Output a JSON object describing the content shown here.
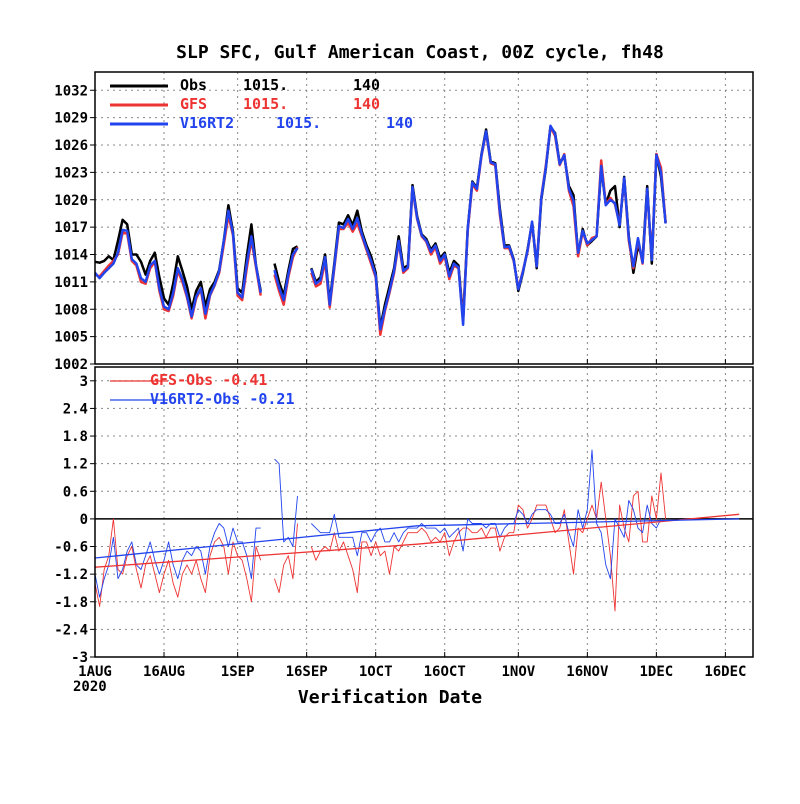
{
  "title": "SLP SFC, Gulf American Coast, 00Z cycle, fh48",
  "colors": {
    "obs": "#000000",
    "gfs": "#ee3333",
    "v16": "#2244ee"
  },
  "chart_data": [
    {
      "type": "line",
      "panel": "top",
      "x_start": "2020-08-01",
      "x_end": "2020-12-22",
      "ylim": [
        1002,
        1034
      ],
      "yticks": [
        "1002",
        "1005",
        "1008",
        "1011",
        "1014",
        "1017",
        "1020",
        "1023",
        "1026",
        "1029",
        "1032"
      ],
      "grid": true,
      "legend": {
        "placement": "top-left",
        "entries": [
          {
            "label": "Obs",
            "mean": "1015.",
            "count": "140"
          },
          {
            "label": "GFS",
            "mean": "1015.",
            "count": "140"
          },
          {
            "label": "V16RT2",
            "mean": "1015.",
            "count": "140"
          }
        ]
      },
      "series": [
        {
          "name": "Obs",
          "color": "#000000",
          "values": [
            1013.2,
            1013.1,
            1013.3,
            1013.8,
            1013.4,
            1015.5,
            1017.8,
            1017.3,
            1014.0,
            1014.0,
            1013.2,
            1011.8,
            1013.3,
            1014.2,
            1011.5,
            1009.2,
            1008.5,
            1010.8,
            1013.8,
            1012.2,
            1010.5,
            1008.0,
            1010.0,
            1011.0,
            1008.3,
            1010.2,
            1011.0,
            1012.3,
            1015.5,
            1019.4,
            1016.5,
            1010.3,
            1009.8,
            1013.8,
            1017.3,
            1012.8,
            1010.0,
            null,
            null,
            1013.0,
            1011.0,
            1009.5,
            1012.2,
            1014.6,
            1014.9,
            null,
            null,
            1012.5,
            1011.0,
            1011.5,
            1014.0,
            1008.8,
            1013.0,
            1017.5,
            1017.3,
            1018.3,
            1017.2,
            1018.8,
            1016.5,
            1015.0,
            1013.8,
            1012.0,
            1006.0,
            1008.5,
            1010.5,
            1012.5,
            1016.0,
            1012.5,
            1012.8,
            1021.6,
            1018.2,
            1016.2,
            1015.7,
            1014.5,
            1015.2,
            1013.6,
            1014.2,
            1012.0,
            1013.3,
            1012.8,
            1007.0,
            1016.8,
            1022.0,
            1021.3,
            1025.0,
            1027.7,
            1024.2,
            1024.0,
            1019.0,
            1015.0,
            1015.0,
            1013.5,
            1010.0,
            1012.0,
            1014.5,
            1017.5,
            1012.5,
            1020.0,
            1023.5,
            1028.0,
            1027.3,
            1024.0,
            1024.8,
            1021.5,
            1020.5,
            1014.0,
            1016.8,
            1015.0,
            1015.5,
            1016.0,
            1023.5,
            1019.5,
            1021.0,
            1021.5,
            1017.0,
            1022.5,
            1016.0,
            1012.0,
            1015.0,
            1013.5,
            1021.5,
            1013.0,
            1025.0,
            1022.5,
            1017.5,
            null,
            null,
            null,
            null,
            null,
            null,
            null,
            null,
            null,
            null,
            null,
            null,
            null,
            null,
            null
          ]
        },
        {
          "name": "GFS",
          "color": "#ee3333",
          "values": [
            1011.8,
            1011.6,
            1012.2,
            1012.8,
            1013.3,
            1014.0,
            1016.4,
            1016.3,
            1013.3,
            1012.8,
            1011.0,
            1010.8,
            1012.5,
            1013.2,
            1010.0,
            1008.0,
            1007.8,
            1009.5,
            1012.2,
            1011.0,
            1009.3,
            1007.0,
            1009.2,
            1010.2,
            1007.0,
            1009.5,
            1010.6,
            1012.0,
            1015.1,
            1018.3,
            1016.1,
            1009.5,
            1009.0,
            1012.5,
            1015.6,
            1012.6,
            1009.5,
            null,
            null,
            1011.8,
            1010.0,
            1008.5,
            1011.5,
            1013.7,
            1014.8,
            null,
            null,
            1012.0,
            1010.5,
            1010.8,
            1013.3,
            1008.2,
            1012.5,
            1016.8,
            1016.8,
            1017.5,
            1016.5,
            1017.4,
            1016.0,
            1014.5,
            1013.0,
            1011.5,
            1005.2,
            1007.8,
            1009.8,
            1012.0,
            1015.3,
            1012.0,
            1012.5,
            1021.2,
            1017.9,
            1016.0,
            1015.4,
            1014.0,
            1014.8,
            1013.0,
            1013.8,
            1011.3,
            1012.8,
            1012.5,
            1006.8,
            1016.6,
            1021.7,
            1021.0,
            1024.8,
            1027.4,
            1024.0,
            1023.8,
            1018.3,
            1014.7,
            1014.7,
            1013.3,
            1010.3,
            1012.2,
            1014.3,
            1017.5,
            1012.8,
            1020.3,
            1023.8,
            1028.0,
            1027.0,
            1023.8,
            1025.0,
            1021.0,
            1019.3,
            1013.8,
            1016.5,
            1015.0,
            1015.8,
            1016.0,
            1024.3,
            1019.5,
            1020.2,
            1019.5,
            1017.3,
            1022.3,
            1015.5,
            1012.5,
            1015.6,
            1013.0,
            1021.0,
            1013.5,
            1025.0,
            1023.5,
            1017.5,
            null,
            null,
            null,
            null,
            null,
            null,
            null,
            null,
            null,
            null,
            null,
            null,
            null,
            null,
            null
          ]
        },
        {
          "name": "V16RT2",
          "color": "#2244ee",
          "values": [
            1012.0,
            1011.4,
            1012.0,
            1012.5,
            1013.0,
            1014.2,
            1016.7,
            1016.6,
            1013.5,
            1013.0,
            1011.4,
            1011.0,
            1012.8,
            1013.3,
            1010.3,
            1008.3,
            1008.0,
            1009.8,
            1012.5,
            1011.3,
            1009.5,
            1007.2,
            1009.4,
            1010.3,
            1007.5,
            1009.6,
            1010.7,
            1012.2,
            1015.5,
            1018.8,
            1016.3,
            1009.8,
            1009.3,
            1013.0,
            1016.0,
            1012.8,
            1009.8,
            null,
            null,
            1012.3,
            1010.4,
            1009.0,
            1011.8,
            1014.0,
            1014.7,
            null,
            null,
            1012.4,
            1010.8,
            1011.2,
            1013.7,
            1008.5,
            1012.7,
            1017.1,
            1016.9,
            1017.9,
            1016.8,
            1018.0,
            1016.2,
            1014.7,
            1013.3,
            1011.7,
            1005.8,
            1008.0,
            1010.0,
            1012.2,
            1015.5,
            1012.2,
            1012.6,
            1021.4,
            1018.0,
            1016.1,
            1015.5,
            1014.3,
            1015.0,
            1013.3,
            1014.0,
            1011.6,
            1013.0,
            1012.6,
            1006.3,
            1016.8,
            1021.9,
            1021.2,
            1024.9,
            1027.5,
            1024.1,
            1023.9,
            1018.6,
            1014.8,
            1014.9,
            1013.4,
            1010.2,
            1012.1,
            1014.4,
            1017.6,
            1012.7,
            1020.2,
            1023.6,
            1028.1,
            1027.2,
            1023.9,
            1024.9,
            1021.2,
            1019.9,
            1014.2,
            1016.6,
            1015.2,
            1015.6,
            1016.0,
            1023.7,
            1019.4,
            1020.0,
            1019.6,
            1017.2,
            1022.4,
            1015.8,
            1012.7,
            1015.8,
            1013.1,
            1021.2,
            1013.4,
            1024.9,
            1023.0,
            1017.4,
            null,
            null,
            null,
            null,
            null,
            null,
            null,
            null,
            null,
            null,
            null,
            null,
            null,
            null,
            null
          ]
        }
      ]
    },
    {
      "type": "line",
      "panel": "bottom",
      "ylim": [
        -3,
        3.3
      ],
      "yticks": [
        "-3",
        "-2.4",
        "-1.8",
        "-1.2",
        "-0.6",
        "0",
        "0.6",
        "1.2",
        "1.8",
        "2.4",
        "3"
      ],
      "xlabel": "Verification Date",
      "xticks": [
        "1AUG",
        "16AUG",
        "1SEP",
        "16SEP",
        "1OCT",
        "16OCT",
        "1NOV",
        "16NOV",
        "1DEC",
        "16DEC"
      ],
      "xtick_days": [
        0,
        15,
        31,
        46,
        61,
        76,
        92,
        107,
        122,
        137
      ],
      "year_label": "2020",
      "grid": true,
      "legend": {
        "placement": "top-left",
        "entries": [
          {
            "label": "GFS-Obs",
            "mean": "-0.41"
          },
          {
            "label": "V16RT2-Obs",
            "mean": "-0.21"
          }
        ]
      },
      "series": [
        {
          "name": "GFS-Obs",
          "color": "#ee3333",
          "values": [
            -1.4,
            -1.9,
            -1.1,
            -0.8,
            0.0,
            -1.1,
            -1.2,
            -0.8,
            -0.6,
            -1.1,
            -1.5,
            -1.0,
            -0.8,
            -1.2,
            -1.6,
            -1.2,
            -0.9,
            -1.4,
            -1.7,
            -1.2,
            -1.0,
            -1.2,
            -0.9,
            -1.3,
            -1.6,
            -0.8,
            -0.5,
            -0.4,
            -0.6,
            -1.2,
            -0.5,
            -0.8,
            -0.9,
            -1.3,
            -1.8,
            -0.6,
            -0.9,
            null,
            null,
            -1.3,
            -1.6,
            -1.0,
            -0.8,
            -1.3,
            -0.1,
            null,
            null,
            -0.6,
            -0.9,
            -0.7,
            -0.6,
            -0.7,
            -0.3,
            -0.7,
            -0.5,
            -0.8,
            -1.1,
            -1.6,
            -0.5,
            -0.5,
            -0.8,
            -0.5,
            -0.8,
            -0.7,
            -1.2,
            -0.6,
            -0.7,
            -0.5,
            -0.3,
            -0.3,
            -0.3,
            -0.2,
            -0.3,
            -0.5,
            -0.4,
            -0.5,
            -0.3,
            -0.8,
            -0.5,
            -0.3,
            -0.2,
            -0.2,
            -0.3,
            -0.3,
            -0.2,
            -0.4,
            -0.2,
            -0.2,
            -0.7,
            -0.4,
            -0.3,
            -0.3,
            0.3,
            0.2,
            -0.2,
            0.0,
            0.3,
            0.3,
            0.3,
            0.0,
            -0.3,
            -0.2,
            0.2,
            -0.5,
            -1.2,
            -0.2,
            -0.3,
            0.0,
            0.3,
            0.0,
            0.8,
            0.0,
            -0.8,
            -2.0,
            0.3,
            -0.2,
            -0.5,
            0.5,
            0.6,
            -0.5,
            -0.5,
            0.5,
            0.0,
            1.0,
            0.0,
            null,
            null,
            null,
            null,
            null,
            null,
            null,
            null,
            null,
            null,
            null,
            null,
            null,
            null,
            null
          ]
        },
        {
          "name": "V16RT2-Obs",
          "color": "#2244ee",
          "values": [
            -1.2,
            -1.7,
            -1.3,
            -1.0,
            -0.4,
            -1.3,
            -1.1,
            -0.7,
            -0.5,
            -1.0,
            -1.1,
            -0.8,
            -0.5,
            -0.9,
            -1.2,
            -0.9,
            -0.5,
            -1.0,
            -1.3,
            -0.9,
            -0.7,
            -0.8,
            -0.6,
            -0.7,
            -1.2,
            -0.6,
            -0.3,
            -0.1,
            -0.2,
            -0.6,
            -0.2,
            -0.5,
            -0.5,
            -0.8,
            -1.3,
            -0.2,
            -0.2,
            null,
            null,
            1.3,
            1.2,
            -0.5,
            -0.4,
            -0.6,
            0.5,
            null,
            null,
            -0.1,
            -0.2,
            -0.3,
            -0.3,
            -0.3,
            0.1,
            -0.4,
            -0.4,
            -0.4,
            -0.4,
            -0.8,
            -0.3,
            -0.3,
            -0.5,
            -0.3,
            -0.2,
            -0.5,
            -0.5,
            -0.3,
            -0.5,
            -0.3,
            -0.2,
            -0.2,
            -0.2,
            -0.1,
            -0.2,
            -0.2,
            -0.2,
            -0.3,
            -0.2,
            -0.4,
            -0.3,
            -0.2,
            -0.7,
            0.0,
            -0.1,
            -0.1,
            -0.1,
            -0.2,
            -0.1,
            -0.1,
            -0.4,
            -0.2,
            -0.1,
            -0.1,
            0.2,
            0.1,
            -0.1,
            0.1,
            0.2,
            0.2,
            0.2,
            0.1,
            -0.1,
            -0.1,
            0.1,
            -0.3,
            -0.6,
            0.2,
            -0.2,
            0.2,
            1.5,
            -0.1,
            -0.3,
            -1.0,
            -1.3,
            0.0,
            -0.2,
            -0.4,
            0.4,
            0.2,
            -0.2,
            -0.3,
            0.3,
            -0.1,
            -0.2,
            0.0,
            null,
            null,
            null,
            null,
            null,
            null,
            null,
            null,
            null,
            null,
            null,
            null,
            null,
            null,
            null
          ]
        },
        {
          "name": "GFS-Obs mean",
          "color": "#ee3333",
          "trend": [
            -1.05,
            -0.55,
            0.1
          ]
        },
        {
          "name": "V16RT2-Obs mean",
          "color": "#2244ee",
          "trend": [
            -0.85,
            -0.15,
            0.0
          ]
        }
      ]
    }
  ]
}
